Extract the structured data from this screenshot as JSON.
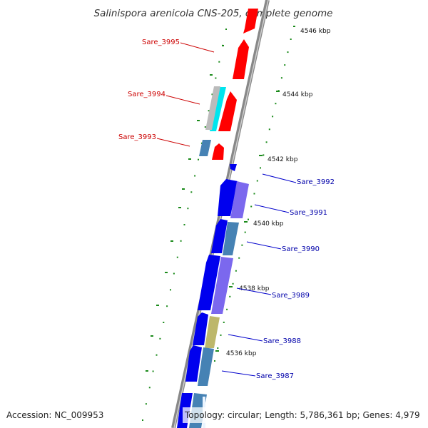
{
  "title": "Salinispora arenicola CNS-205, complete genome",
  "accession": "Accession: NC_009953",
  "topology": "Topology: circular; Length: 5,786,361 bp; Genes: 4,979",
  "scale_labels": [
    "4546 kbp",
    "4544 kbp",
    "4542 kbp",
    "4540 kbp",
    "4538 kbp",
    "4536 kbp"
  ],
  "genes_left": [
    "Sare_3995",
    "Sare_3994",
    "Sare_3993"
  ],
  "genes_right": [
    "Sare_3992",
    "Sare_3991",
    "Sare_3990",
    "Sare_3989",
    "Sare_3988",
    "Sare_3987"
  ],
  "colors": {
    "left_label": "#cc0000",
    "right_label": "#0000aa",
    "tick": "#1a8a1a",
    "red": "#ff0000",
    "blue": "#0000ee",
    "purple": "#7b68ee",
    "steel": "#4682b4",
    "khaki": "#bdb76b",
    "cyan": "#00ffff",
    "gray": "#bbbbbb",
    "backbone": "#888888"
  }
}
